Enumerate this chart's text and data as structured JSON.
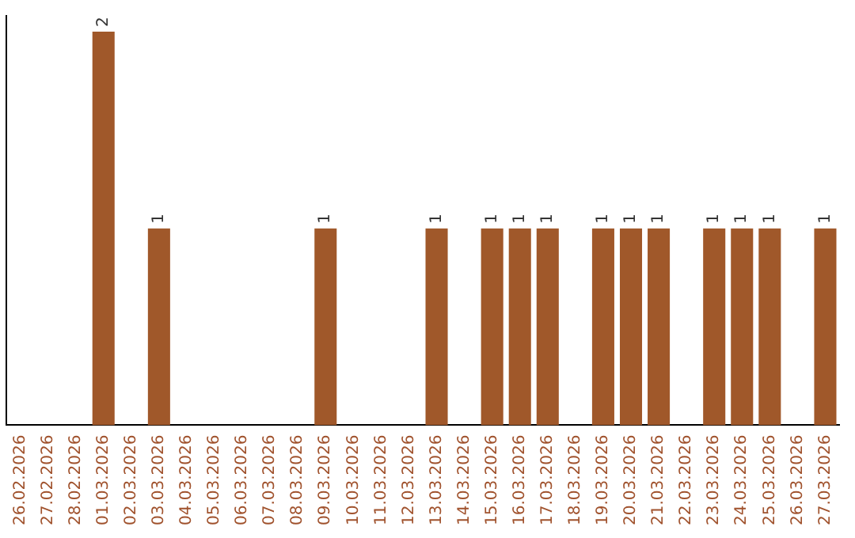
{
  "chart_data": {
    "type": "bar",
    "categories": [
      "26.02.2026",
      "27.02.2026",
      "28.02.2026",
      "01.03.2026",
      "02.03.2026",
      "03.03.2026",
      "04.03.2026",
      "05.03.2026",
      "06.03.2026",
      "07.03.2026",
      "08.03.2026",
      "09.03.2026",
      "10.03.2026",
      "11.03.2026",
      "12.03.2026",
      "13.03.2026",
      "14.03.2026",
      "15.03.2026",
      "16.03.2026",
      "17.03.2026",
      "18.03.2026",
      "19.03.2026",
      "20.03.2026",
      "21.03.2026",
      "22.03.2026",
      "23.03.2026",
      "24.03.2026",
      "25.03.2026",
      "26.03.2026",
      "27.03.2026"
    ],
    "values": [
      0,
      0,
      0,
      2,
      0,
      1,
      0,
      0,
      0,
      0,
      0,
      1,
      0,
      0,
      0,
      1,
      0,
      1,
      1,
      1,
      0,
      1,
      1,
      1,
      0,
      1,
      1,
      1,
      0,
      1
    ],
    "value_labels": [
      null,
      null,
      null,
      "2",
      null,
      "1",
      null,
      null,
      null,
      null,
      null,
      "1",
      null,
      null,
      null,
      "1",
      null,
      "1",
      "1",
      "1",
      null,
      "1",
      "1",
      "1",
      null,
      "1",
      "1",
      "1",
      null,
      "1"
    ],
    "color": "#a0582a",
    "ylim": [
      0,
      2.08
    ],
    "tick_labels": "x",
    "grid": false,
    "legend": false
  }
}
